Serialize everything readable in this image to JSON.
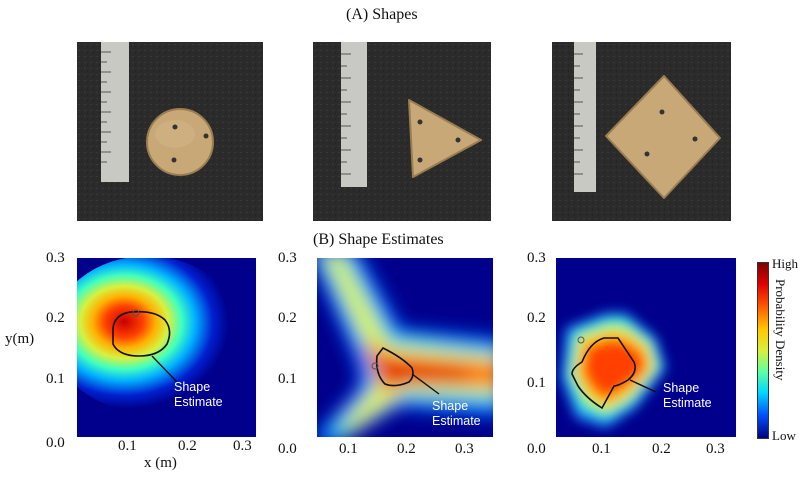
{
  "section_a_title": "(A) Shapes",
  "section_b_title": "(B) Shape Estimates",
  "photos": [
    {
      "shape": "circle"
    },
    {
      "shape": "triangle"
    },
    {
      "shape": "square"
    }
  ],
  "heatmaps": [
    {
      "y_ticks": [
        "0.3",
        "0.2",
        "0.1",
        "0.0"
      ],
      "x_ticks": [
        "0.1",
        "0.2",
        "0.3"
      ],
      "xlabel": "x (m)",
      "ylabel": "y(m)",
      "annotation_line1": "Shape",
      "annotation_line2": "Estimate"
    },
    {
      "y_ticks": [
        "0.3",
        "0.2",
        "0.1",
        "0.0"
      ],
      "x_ticks": [
        "0.1",
        "0.2",
        "0.3"
      ],
      "annotation_line1": "Shape",
      "annotation_line2": "Estimate"
    },
    {
      "y_ticks": [
        "0.3",
        "0.2",
        "0.1",
        "0.0"
      ],
      "x_ticks": [
        "0.1",
        "0.2",
        "0.3"
      ],
      "annotation_line1": "Shape",
      "annotation_line2": "Estimate"
    }
  ],
  "colorbar": {
    "high_label": "High",
    "low_label": "Low",
    "title": "Probability Density",
    "colors": [
      "#7f0000",
      "#e00000",
      "#ff5a00",
      "#ffc800",
      "#d8f03a",
      "#60ffa0",
      "#00d8ff",
      "#0050ff",
      "#000080"
    ]
  }
}
